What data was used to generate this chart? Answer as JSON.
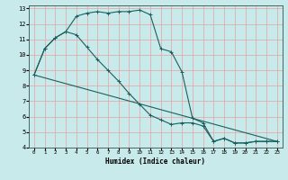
{
  "xlabel": "Humidex (Indice chaleur)",
  "bg_color": "#c8eaea",
  "grid_color": "#e8a0a0",
  "line_color": "#1a6060",
  "line1_x": [
    0,
    1,
    2,
    3,
    4,
    5,
    6,
    7,
    8,
    9,
    10,
    11,
    12,
    13,
    14,
    15,
    16,
    17,
    18,
    19,
    20,
    21,
    22,
    23
  ],
  "line1_y": [
    8.7,
    10.4,
    11.1,
    11.5,
    12.5,
    12.7,
    12.8,
    12.7,
    12.8,
    12.8,
    12.9,
    12.6,
    10.4,
    10.2,
    8.9,
    5.9,
    5.6,
    4.4,
    4.6,
    4.3,
    4.3,
    4.4,
    4.4,
    4.4
  ],
  "line2_x": [
    0,
    1,
    2,
    3,
    4,
    5,
    6,
    7,
    8,
    9,
    10,
    11,
    12,
    13,
    14,
    15,
    16,
    17,
    18,
    19,
    20,
    21,
    22,
    23
  ],
  "line2_y": [
    8.7,
    10.4,
    11.1,
    11.5,
    11.3,
    10.5,
    9.7,
    9.0,
    8.3,
    7.5,
    6.8,
    6.1,
    5.8,
    5.5,
    5.6,
    5.6,
    5.4,
    4.4,
    4.6,
    4.3,
    4.3,
    4.4,
    4.4,
    4.4
  ],
  "line3_x": [
    0,
    23
  ],
  "line3_y": [
    8.7,
    4.4
  ],
  "ylim": [
    4,
    13
  ],
  "xlim": [
    -0.5,
    23.5
  ],
  "yticks": [
    4,
    5,
    6,
    7,
    8,
    9,
    10,
    11,
    12,
    13
  ],
  "xticks": [
    0,
    1,
    2,
    3,
    4,
    5,
    6,
    7,
    8,
    9,
    10,
    11,
    12,
    13,
    14,
    15,
    16,
    17,
    18,
    19,
    20,
    21,
    22,
    23
  ]
}
